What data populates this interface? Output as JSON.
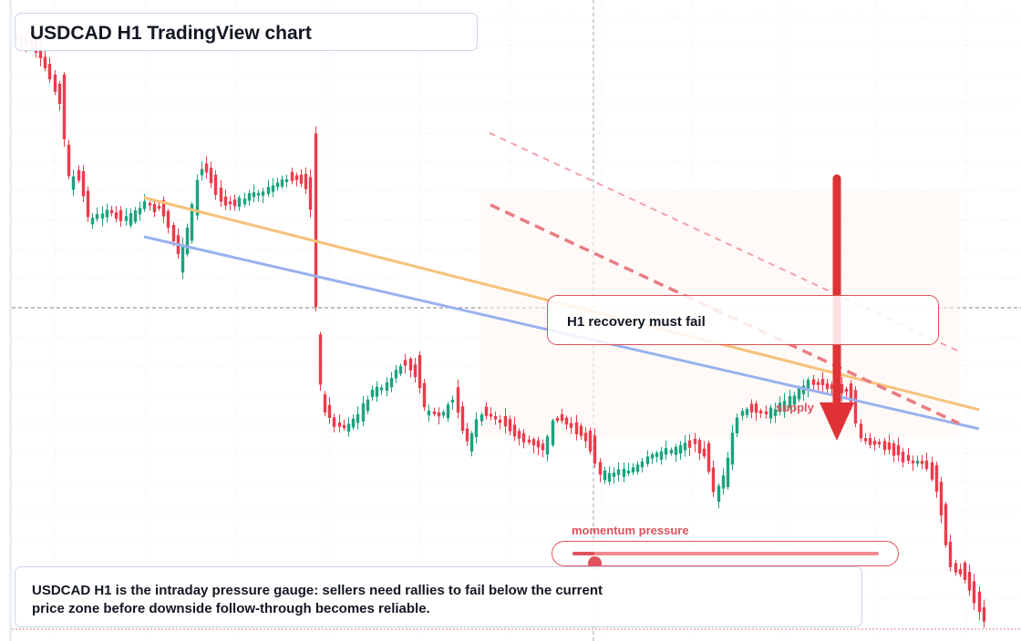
{
  "header": {
    "title": "USDCAD H1 TradingView chart"
  },
  "colors": {
    "up": "#1ba37f",
    "down": "#ec3b4b",
    "accent_red": "#e0525c",
    "trend_orange": "#f6c27a",
    "trend_blue": "#98b1f0",
    "grid": "#e6e9ef"
  },
  "annotations": {
    "callout": "H1 recovery must fail",
    "zone_label": "supply",
    "momentum_label": "momentum pressure",
    "momentum_level": 0.07,
    "summary": "USDCAD H1 is the intraday pressure gauge: sellers need rallies to fail below the current price zone before downside follow-through becomes reliable."
  },
  "chart_data": {
    "type": "candlestick",
    "title": "USDCAD H1 TradingView chart",
    "symbol": "USDCAD",
    "timeframe": "H1",
    "grid": true,
    "up_color": "#1ba37f",
    "down_color": "#ec3b4b",
    "annotations": [
      "H1 recovery must fail",
      "supply",
      "momentum pressure"
    ]
  }
}
